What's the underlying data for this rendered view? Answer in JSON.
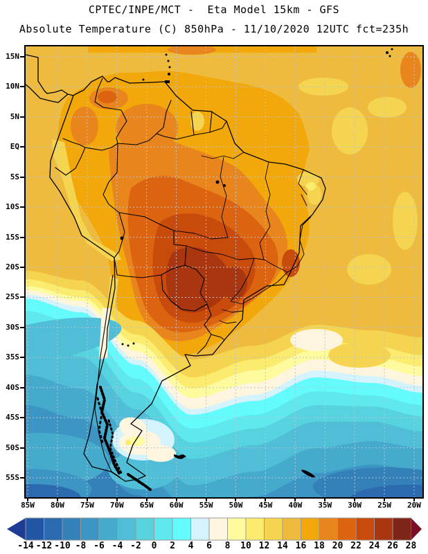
{
  "header": {
    "line1": "CPTEC/INPE/MCT -  Eta Model 15km - GFS",
    "line2": "Absolute Temperature (C) 850hPa - 11/10/2020 12UTC fct=235h"
  },
  "axes": {
    "lat_labels": [
      "15N",
      "10N",
      "5N",
      "EQ",
      "5S",
      "10S",
      "15S",
      "20S",
      "25S",
      "30S",
      "35S",
      "40S",
      "45S",
      "50S",
      "55S"
    ],
    "lon_labels": [
      "85W",
      "80W",
      "75W",
      "70W",
      "65W",
      "60W",
      "55W",
      "50W",
      "45W",
      "40W",
      "35W",
      "30W",
      "25W",
      "20W"
    ]
  },
  "colorbar": {
    "tick_labels": [
      "-14",
      "-12",
      "-10",
      "-8",
      "-6",
      "-4",
      "-2",
      "0",
      "2",
      "4",
      "6",
      "8",
      "10",
      "12",
      "14",
      "16",
      "18",
      "20",
      "22",
      "24",
      "26",
      "28"
    ],
    "cells": [
      "#2355A5",
      "#2B6AAF",
      "#3480B9",
      "#3D95C3",
      "#46AACD",
      "#4FBED6",
      "#57D3DF",
      "#5FE9EE",
      "#63FBFB",
      "#D4F3FD",
      "#FDF5DE",
      "#FEFA9E",
      "#FBEB6F",
      "#F5D44F",
      "#EFBB3E",
      "#F2A80A",
      "#E8861D",
      "#DC6410",
      "#C84B0B",
      "#A9360F",
      "#7E2418"
    ],
    "under_arrow_color": "#1E3C96",
    "over_arrow_color": "#7A1028",
    "cell_border_color": "#999999",
    "units": "C",
    "min": -14,
    "max": 28,
    "step": 2
  },
  "map_style": {
    "grid_color": "#B8C4D6",
    "coast_color": "#000000",
    "frame_color": "#000000",
    "ocean_base_note": "gold north / cyan south temperature shading"
  },
  "chart_data": {
    "type": "heatmap",
    "title": "CPTEC/INPE/MCT -  Eta Model 15km - GFS",
    "subtitle": "Absolute Temperature (C) 850hPa - 11/10/2020 12UTC fct=235h",
    "variable": "Absolute Temperature",
    "units": "C",
    "level": "850hPa",
    "valid": "11/10/2020 12UTC fct=235h",
    "colorbar_values": [
      -14,
      -12,
      -10,
      -8,
      -6,
      -4,
      -2,
      0,
      2,
      4,
      6,
      8,
      10,
      12,
      14,
      16,
      18,
      20,
      22,
      24,
      26,
      28
    ],
    "lat_range": [
      "15N",
      "55S"
    ],
    "lon_range": [
      "85W",
      "20W"
    ],
    "grid": true,
    "legend_position": "bottom",
    "field_summary": "Warm core 22-28C over central Brazil/Paraguay; 14-18C over tropical Atlantic; cold air -2 to -10C south of 35S with coldest over far South Atlantic and SE Pacific"
  }
}
